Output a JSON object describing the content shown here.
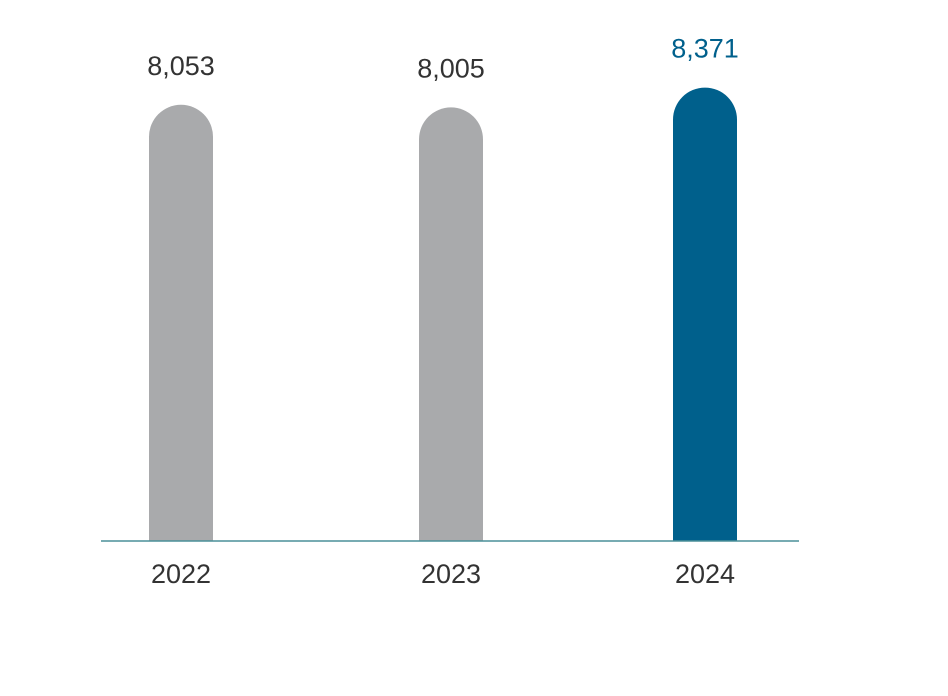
{
  "chart_data": {
    "type": "bar",
    "title": "",
    "xlabel": "",
    "ylabel": "",
    "categories": [
      "2022",
      "2023",
      "2024"
    ],
    "values": [
      8053,
      8005,
      8371
    ],
    "value_labels": [
      "8,053",
      "8,005",
      "8,371"
    ],
    "ylim": [
      0,
      8880
    ],
    "grid": false,
    "legend": "none",
    "bar_colors": [
      "#a9aaac",
      "#a9aaac",
      "#00608c"
    ],
    "label_colors": [
      "#333333",
      "#333333",
      "#00608c"
    ],
    "axis_color": "#4a8f98"
  }
}
